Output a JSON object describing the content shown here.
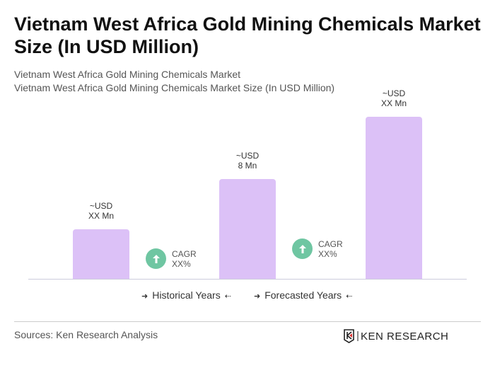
{
  "title": "Vietnam West Africa Gold Mining Chemicals Market Size (In USD Million)",
  "subtitle1": "Vietnam West Africa Gold Mining Chemicals Market",
  "subtitle2": "Vietnam West Africa Gold Mining Chemicals Market Size (In USD Million)",
  "chart_data": {
    "type": "bar",
    "categories": [
      "",
      "",
      ""
    ],
    "values": [
      4,
      8,
      13
    ],
    "data_labels": [
      {
        "line1": "~USD",
        "line2": "XX Mn"
      },
      {
        "line1": "~USD",
        "line2": "8 Mn"
      },
      {
        "line1": "~USD",
        "line2": "XX Mn"
      }
    ],
    "bar_color": "#dcc1f7",
    "cagr": [
      {
        "label": "CAGR",
        "value": "XX%"
      },
      {
        "label": "CAGR",
        "value": "XX%"
      }
    ],
    "cagr_color": "#6fc6a2",
    "legend": [
      "Historical Years",
      "Forecasted Years"
    ],
    "grid": false,
    "ylim": [
      0,
      14
    ]
  },
  "source": "Sources: Ken Research Analysis",
  "logo_text": "KEN RESEARCH"
}
